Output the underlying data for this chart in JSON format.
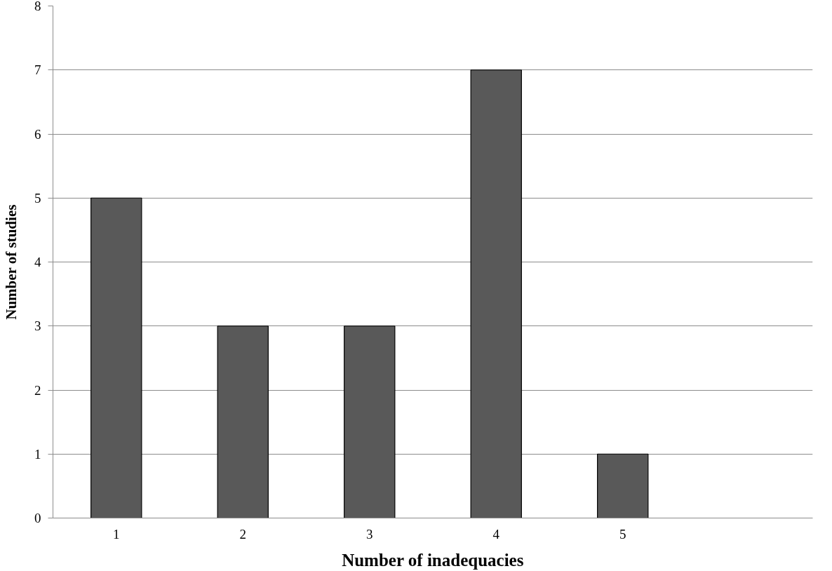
{
  "chart_data": {
    "type": "bar",
    "xlabel": "Number of inadequacies",
    "ylabel": "Number of studies",
    "categories": [
      "1",
      "2",
      "3",
      "4",
      "5",
      null
    ],
    "values": [
      5,
      3,
      3,
      7,
      1,
      null
    ],
    "color": "#595959",
    "ylim": [
      0,
      8
    ],
    "yticks": [
      0,
      1,
      2,
      3,
      4,
      5,
      6,
      7,
      8
    ],
    "grid": "y"
  }
}
